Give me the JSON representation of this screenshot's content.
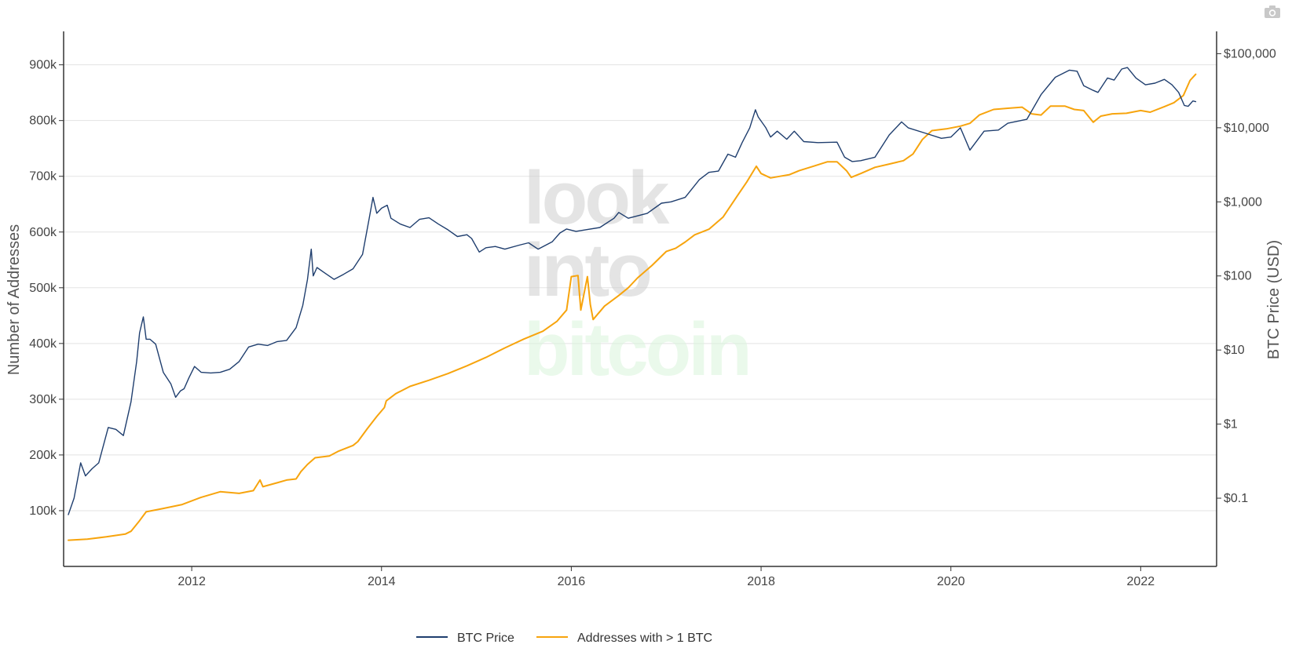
{
  "chart_data": {
    "type": "line",
    "title": "",
    "watermark": [
      "look",
      "into",
      "bitcoin"
    ],
    "xlabel": "",
    "x_ticks": [
      "2012",
      "2014",
      "2016",
      "2018",
      "2020",
      "2022"
    ],
    "x_range": [
      2010.65,
      2022.8
    ],
    "y_left": {
      "label": "Number of Addresses",
      "range": [
        0,
        960000
      ],
      "ticks": [
        {
          "v": 100000,
          "label": "100k"
        },
        {
          "v": 200000,
          "label": "200k"
        },
        {
          "v": 300000,
          "label": "300k"
        },
        {
          "v": 400000,
          "label": "400k"
        },
        {
          "v": 500000,
          "label": "500k"
        },
        {
          "v": 600000,
          "label": "600k"
        },
        {
          "v": 700000,
          "label": "700k"
        },
        {
          "v": 800000,
          "label": "800k"
        },
        {
          "v": 900000,
          "label": "900k"
        }
      ]
    },
    "y_right": {
      "label": "BTC Price (USD)",
      "scale": "log",
      "range": [
        0.012,
        200000
      ],
      "ticks": [
        {
          "v": 0.1,
          "label": "$0.1"
        },
        {
          "v": 1,
          "label": "$1"
        },
        {
          "v": 10,
          "label": "$10"
        },
        {
          "v": 100,
          "label": "$100"
        },
        {
          "v": 1000,
          "label": "$1,000"
        },
        {
          "v": 10000,
          "label": "$10,000"
        },
        {
          "v": 100000,
          "label": "$100,000"
        }
      ]
    },
    "legend": {
      "position": "bottom-center"
    },
    "series": [
      {
        "name": "BTC Price",
        "axis": "right",
        "color": "#1f3e6e",
        "points": [
          [
            2010.7,
            0.06
          ],
          [
            2010.76,
            0.1
          ],
          [
            2010.83,
            0.3
          ],
          [
            2010.88,
            0.2
          ],
          [
            2010.95,
            0.25
          ],
          [
            2011.02,
            0.3
          ],
          [
            2011.12,
            0.9
          ],
          [
            2011.2,
            0.85
          ],
          [
            2011.28,
            0.7
          ],
          [
            2011.36,
            2.0
          ],
          [
            2011.42,
            7.0
          ],
          [
            2011.45,
            17.0
          ],
          [
            2011.49,
            28.0
          ],
          [
            2011.52,
            14.0
          ],
          [
            2011.56,
            14.0
          ],
          [
            2011.62,
            12.0
          ],
          [
            2011.7,
            5.0
          ],
          [
            2011.78,
            3.5
          ],
          [
            2011.83,
            2.3
          ],
          [
            2011.88,
            2.8
          ],
          [
            2011.92,
            3.0
          ],
          [
            2011.97,
            4.2
          ],
          [
            2012.03,
            6.0
          ],
          [
            2012.1,
            5.0
          ],
          [
            2012.2,
            4.9
          ],
          [
            2012.3,
            5.0
          ],
          [
            2012.4,
            5.5
          ],
          [
            2012.5,
            7.0
          ],
          [
            2012.6,
            11.0
          ],
          [
            2012.7,
            12.0
          ],
          [
            2012.8,
            11.5
          ],
          [
            2012.9,
            13.0
          ],
          [
            2013.0,
            13.5
          ],
          [
            2013.1,
            20.0
          ],
          [
            2013.17,
            40.0
          ],
          [
            2013.22,
            90.0
          ],
          [
            2013.26,
            230.0
          ],
          [
            2013.28,
            100.0
          ],
          [
            2013.32,
            130.0
          ],
          [
            2013.4,
            110.0
          ],
          [
            2013.5,
            90.0
          ],
          [
            2013.6,
            105.0
          ],
          [
            2013.7,
            125.0
          ],
          [
            2013.8,
            195.0
          ],
          [
            2013.87,
            600.0
          ],
          [
            2013.91,
            1150.0
          ],
          [
            2013.95,
            700.0
          ],
          [
            2014.0,
            820.0
          ],
          [
            2014.06,
            900.0
          ],
          [
            2014.1,
            600.0
          ],
          [
            2014.2,
            500.0
          ],
          [
            2014.3,
            450.0
          ],
          [
            2014.4,
            580.0
          ],
          [
            2014.5,
            610.0
          ],
          [
            2014.6,
            500.0
          ],
          [
            2014.7,
            420.0
          ],
          [
            2014.8,
            340.0
          ],
          [
            2014.9,
            360.0
          ],
          [
            2014.95,
            320.0
          ],
          [
            2015.03,
            210.0
          ],
          [
            2015.1,
            240.0
          ],
          [
            2015.2,
            250.0
          ],
          [
            2015.3,
            230.0
          ],
          [
            2015.45,
            260.0
          ],
          [
            2015.55,
            280.0
          ],
          [
            2015.65,
            230.0
          ],
          [
            2015.8,
            290.0
          ],
          [
            2015.88,
            380.0
          ],
          [
            2015.95,
            430.0
          ],
          [
            2016.05,
            400.0
          ],
          [
            2016.15,
            420.0
          ],
          [
            2016.3,
            450.0
          ],
          [
            2016.45,
            600.0
          ],
          [
            2016.5,
            720.0
          ],
          [
            2016.6,
            600.0
          ],
          [
            2016.8,
            700.0
          ],
          [
            2016.95,
            960.0
          ],
          [
            2017.05,
            1000.0
          ],
          [
            2017.2,
            1150.0
          ],
          [
            2017.35,
            2000.0
          ],
          [
            2017.45,
            2500.0
          ],
          [
            2017.55,
            2600.0
          ],
          [
            2017.65,
            4400.0
          ],
          [
            2017.73,
            4000.0
          ],
          [
            2017.8,
            6300.0
          ],
          [
            2017.88,
            10000.0
          ],
          [
            2017.94,
            17500.0
          ],
          [
            2017.97,
            14000.0
          ],
          [
            2018.05,
            10000.0
          ],
          [
            2018.1,
            7500.0
          ],
          [
            2018.17,
            9000.0
          ],
          [
            2018.27,
            7000.0
          ],
          [
            2018.35,
            9000.0
          ],
          [
            2018.45,
            6500.0
          ],
          [
            2018.6,
            6300.0
          ],
          [
            2018.8,
            6400.0
          ],
          [
            2018.88,
            4000.0
          ],
          [
            2018.96,
            3500.0
          ],
          [
            2019.05,
            3600.0
          ],
          [
            2019.2,
            4000.0
          ],
          [
            2019.35,
            8000.0
          ],
          [
            2019.48,
            12000.0
          ],
          [
            2019.55,
            10000.0
          ],
          [
            2019.75,
            8300.0
          ],
          [
            2019.9,
            7200.0
          ],
          [
            2020.0,
            7500.0
          ],
          [
            2020.1,
            10000.0
          ],
          [
            2020.2,
            5000.0
          ],
          [
            2020.35,
            9000.0
          ],
          [
            2020.5,
            9300.0
          ],
          [
            2020.6,
            11500.0
          ],
          [
            2020.8,
            13000.0
          ],
          [
            2020.95,
            28000.0
          ],
          [
            2021.1,
            48000.0
          ],
          [
            2021.25,
            60000.0
          ],
          [
            2021.33,
            58000.0
          ],
          [
            2021.4,
            37000.0
          ],
          [
            2021.5,
            32000.0
          ],
          [
            2021.55,
            30000.0
          ],
          [
            2021.65,
            47000.0
          ],
          [
            2021.72,
            44000.0
          ],
          [
            2021.8,
            62000.0
          ],
          [
            2021.86,
            65000.0
          ],
          [
            2021.95,
            47000.0
          ],
          [
            2022.05,
            38000.0
          ],
          [
            2022.15,
            40000.0
          ],
          [
            2022.25,
            45000.0
          ],
          [
            2022.33,
            38000.0
          ],
          [
            2022.4,
            30000.0
          ],
          [
            2022.46,
            20000.0
          ],
          [
            2022.5,
            19500.0
          ],
          [
            2022.55,
            23000.0
          ],
          [
            2022.58,
            22500.0
          ]
        ]
      },
      {
        "name": "Addresses with > 1 BTC",
        "axis": "left",
        "color": "#f7a40d",
        "points": [
          [
            2010.7,
            47000
          ],
          [
            2010.9,
            49000
          ],
          [
            2011.1,
            53000
          ],
          [
            2011.3,
            58000
          ],
          [
            2011.36,
            63000
          ],
          [
            2011.45,
            82000
          ],
          [
            2011.52,
            98000
          ],
          [
            2011.7,
            104000
          ],
          [
            2011.9,
            111000
          ],
          [
            2012.1,
            124000
          ],
          [
            2012.3,
            134000
          ],
          [
            2012.5,
            131000
          ],
          [
            2012.65,
            136000
          ],
          [
            2012.72,
            155000
          ],
          [
            2012.75,
            143000
          ],
          [
            2012.9,
            150000
          ],
          [
            2013.0,
            155000
          ],
          [
            2013.1,
            157000
          ],
          [
            2013.15,
            170000
          ],
          [
            2013.22,
            183000
          ],
          [
            2013.3,
            195000
          ],
          [
            2013.45,
            198000
          ],
          [
            2013.55,
            207000
          ],
          [
            2013.7,
            217000
          ],
          [
            2013.75,
            224000
          ],
          [
            2013.85,
            247000
          ],
          [
            2013.95,
            269000
          ],
          [
            2014.03,
            285000
          ],
          [
            2014.05,
            297000
          ],
          [
            2014.15,
            310000
          ],
          [
            2014.3,
            323000
          ],
          [
            2014.5,
            334000
          ],
          [
            2014.7,
            346000
          ],
          [
            2014.9,
            360000
          ],
          [
            2015.1,
            375000
          ],
          [
            2015.3,
            392000
          ],
          [
            2015.5,
            408000
          ],
          [
            2015.7,
            422000
          ],
          [
            2015.85,
            440000
          ],
          [
            2015.95,
            460000
          ],
          [
            2016.0,
            520000
          ],
          [
            2016.07,
            522000
          ],
          [
            2016.1,
            460000
          ],
          [
            2016.17,
            520000
          ],
          [
            2016.2,
            470000
          ],
          [
            2016.23,
            443000
          ],
          [
            2016.35,
            467000
          ],
          [
            2016.5,
            486000
          ],
          [
            2016.6,
            500000
          ],
          [
            2016.7,
            518000
          ],
          [
            2016.85,
            540000
          ],
          [
            2017.0,
            565000
          ],
          [
            2017.1,
            571000
          ],
          [
            2017.2,
            582000
          ],
          [
            2017.3,
            595000
          ],
          [
            2017.45,
            605000
          ],
          [
            2017.6,
            627000
          ],
          [
            2017.75,
            665000
          ],
          [
            2017.85,
            690000
          ],
          [
            2017.95,
            718000
          ],
          [
            2018.0,
            705000
          ],
          [
            2018.1,
            697000
          ],
          [
            2018.2,
            700000
          ],
          [
            2018.3,
            703000
          ],
          [
            2018.4,
            710000
          ],
          [
            2018.55,
            718000
          ],
          [
            2018.7,
            726000
          ],
          [
            2018.8,
            726000
          ],
          [
            2018.9,
            710000
          ],
          [
            2018.95,
            698000
          ],
          [
            2019.05,
            705000
          ],
          [
            2019.2,
            716000
          ],
          [
            2019.35,
            722000
          ],
          [
            2019.5,
            728000
          ],
          [
            2019.6,
            740000
          ],
          [
            2019.7,
            766000
          ],
          [
            2019.8,
            782000
          ],
          [
            2019.95,
            785000
          ],
          [
            2020.1,
            790000
          ],
          [
            2020.2,
            795000
          ],
          [
            2020.3,
            810000
          ],
          [
            2020.45,
            820000
          ],
          [
            2020.6,
            822000
          ],
          [
            2020.75,
            824000
          ],
          [
            2020.85,
            812000
          ],
          [
            2020.95,
            810000
          ],
          [
            2021.05,
            826000
          ],
          [
            2021.2,
            826000
          ],
          [
            2021.3,
            820000
          ],
          [
            2021.4,
            818000
          ],
          [
            2021.5,
            797000
          ],
          [
            2021.58,
            808000
          ],
          [
            2021.7,
            812000
          ],
          [
            2021.85,
            813000
          ],
          [
            2022.0,
            818000
          ],
          [
            2022.1,
            815000
          ],
          [
            2022.25,
            825000
          ],
          [
            2022.35,
            832000
          ],
          [
            2022.45,
            845000
          ],
          [
            2022.52,
            872000
          ],
          [
            2022.58,
            883000
          ]
        ]
      }
    ]
  }
}
